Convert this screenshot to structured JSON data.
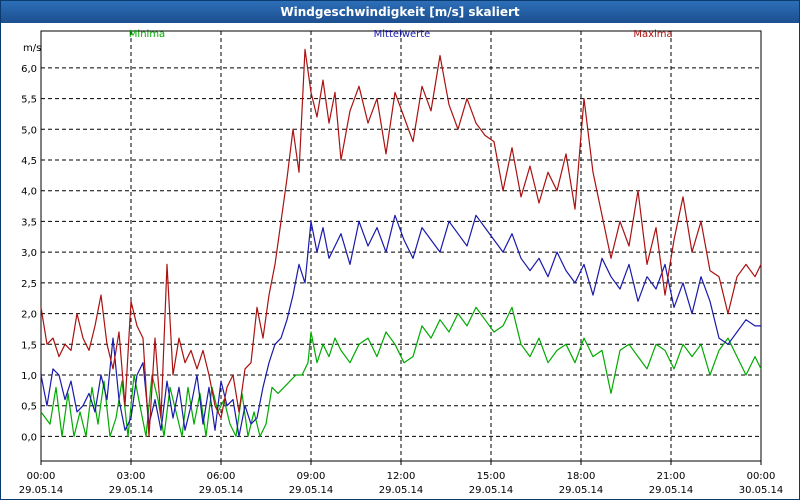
{
  "window": {
    "title": "Windgeschwindigkeit [m/s] skaliert"
  },
  "chart_data": {
    "type": "line",
    "title": "Windgeschwindigkeit [m/s] skaliert",
    "ylabel": "m/s",
    "xlabel": "",
    "ylim": [
      -0.4,
      6.6
    ],
    "xlim": [
      0,
      24
    ],
    "grid": true,
    "legend_position": "top",
    "yticks": [
      "0,0",
      "0,5",
      "1,0",
      "1,5",
      "2,0",
      "2,5",
      "3,0",
      "3,5",
      "4,0",
      "4,5",
      "5,0",
      "5,5",
      "6,0"
    ],
    "yticks_values": [
      0,
      0.5,
      1,
      1.5,
      2,
      2.5,
      3,
      3.5,
      4,
      4.5,
      5,
      5.5,
      6
    ],
    "xticks": [
      {
        "time": "00:00",
        "date": "29.05.14"
      },
      {
        "time": "03:00",
        "date": "29.05.14"
      },
      {
        "time": "06:00",
        "date": "29.05.14"
      },
      {
        "time": "09:00",
        "date": "29.05.14"
      },
      {
        "time": "12:00",
        "date": "29.05.14"
      },
      {
        "time": "15:00",
        "date": "29.05.14"
      },
      {
        "time": "18:00",
        "date": "29.05.14"
      },
      {
        "time": "21:00",
        "date": "29.05.14"
      },
      {
        "time": "00:00",
        "date": "30.05.14"
      }
    ],
    "xticks_hours": [
      0,
      3,
      6,
      9,
      12,
      15,
      18,
      21,
      24
    ],
    "series": [
      {
        "name": "Minima",
        "color": "#00aa00",
        "x": [
          0,
          0.3,
          0.5,
          0.7,
          0.9,
          1.1,
          1.3,
          1.5,
          1.7,
          1.9,
          2.1,
          2.3,
          2.5,
          2.7,
          2.9,
          3.1,
          3.3,
          3.5,
          3.7,
          3.9,
          4.1,
          4.3,
          4.5,
          4.7,
          4.9,
          5.1,
          5.3,
          5.5,
          5.7,
          5.9,
          6.1,
          6.3,
          6.5,
          6.7,
          6.9,
          7.1,
          7.3,
          7.5,
          7.7,
          7.9,
          8.1,
          8.3,
          8.5,
          8.7,
          8.9,
          9.0,
          9.2,
          9.4,
          9.6,
          9.8,
          10.0,
          10.3,
          10.6,
          10.9,
          11.2,
          11.5,
          11.8,
          12.1,
          12.4,
          12.7,
          13.0,
          13.3,
          13.6,
          13.9,
          14.2,
          14.5,
          14.8,
          15.1,
          15.4,
          15.7,
          16.0,
          16.3,
          16.6,
          16.9,
          17.2,
          17.5,
          17.8,
          18.1,
          18.4,
          18.7,
          19.0,
          19.3,
          19.6,
          19.9,
          20.2,
          20.5,
          20.8,
          21.1,
          21.4,
          21.7,
          22.0,
          22.3,
          22.6,
          22.9,
          23.2,
          23.5,
          23.8,
          24.0
        ],
        "values": [
          0.4,
          0.2,
          0.8,
          0.0,
          0.7,
          0.0,
          0.4,
          0.0,
          0.8,
          0.2,
          0.9,
          0.0,
          0.3,
          0.9,
          0.0,
          1.0,
          0.5,
          0.0,
          1.0,
          0.6,
          0.0,
          0.8,
          0.4,
          0.0,
          0.8,
          0.2,
          0.7,
          0.0,
          0.8,
          0.4,
          0.6,
          0.2,
          0.0,
          0.7,
          0.0,
          0.4,
          0.0,
          0.2,
          0.8,
          0.7,
          0.8,
          0.9,
          1.0,
          1.0,
          1.2,
          1.7,
          1.2,
          1.5,
          1.3,
          1.6,
          1.4,
          1.2,
          1.5,
          1.6,
          1.3,
          1.7,
          1.5,
          1.2,
          1.3,
          1.8,
          1.6,
          1.9,
          1.7,
          2.0,
          1.8,
          2.1,
          1.9,
          1.7,
          1.8,
          2.1,
          1.5,
          1.3,
          1.6,
          1.2,
          1.4,
          1.5,
          1.2,
          1.6,
          1.3,
          1.4,
          0.7,
          1.4,
          1.5,
          1.3,
          1.1,
          1.5,
          1.4,
          1.1,
          1.5,
          1.3,
          1.5,
          1.0,
          1.4,
          1.6,
          1.3,
          1.0,
          1.3,
          1.1
        ]
      },
      {
        "name": "Mittelwerte",
        "color": "#1a1aaa",
        "x": [
          0,
          0.2,
          0.4,
          0.6,
          0.8,
          1.0,
          1.2,
          1.4,
          1.6,
          1.8,
          2.0,
          2.2,
          2.4,
          2.6,
          2.8,
          3.0,
          3.2,
          3.4,
          3.6,
          3.8,
          4.0,
          4.2,
          4.4,
          4.6,
          4.8,
          5.0,
          5.2,
          5.4,
          5.6,
          5.8,
          6.0,
          6.2,
          6.4,
          6.6,
          6.8,
          7.0,
          7.2,
          7.4,
          7.6,
          7.8,
          8.0,
          8.2,
          8.4,
          8.6,
          8.8,
          9.0,
          9.2,
          9.4,
          9.6,
          9.8,
          10.0,
          10.3,
          10.6,
          10.9,
          11.2,
          11.5,
          11.8,
          12.1,
          12.4,
          12.7,
          13.0,
          13.3,
          13.6,
          13.9,
          14.2,
          14.5,
          14.8,
          15.1,
          15.4,
          15.7,
          16.0,
          16.3,
          16.6,
          16.9,
          17.2,
          17.5,
          17.8,
          18.1,
          18.4,
          18.7,
          19.0,
          19.3,
          19.6,
          19.9,
          20.2,
          20.5,
          20.8,
          21.1,
          21.4,
          21.7,
          22.0,
          22.3,
          22.6,
          22.9,
          23.2,
          23.5,
          23.8,
          24.0
        ],
        "values": [
          1.0,
          0.5,
          1.1,
          1.0,
          0.6,
          0.9,
          0.4,
          0.5,
          0.7,
          0.4,
          1.0,
          0.6,
          1.6,
          0.6,
          0.1,
          0.3,
          1.0,
          1.2,
          0.2,
          0.6,
          0.1,
          0.9,
          0.3,
          0.8,
          0.1,
          0.5,
          1.0,
          0.2,
          0.8,
          0.1,
          0.9,
          0.5,
          0.6,
          0.0,
          0.5,
          0.2,
          0.3,
          0.8,
          1.2,
          1.5,
          1.6,
          1.9,
          2.3,
          2.8,
          2.5,
          3.5,
          3.0,
          3.4,
          2.9,
          3.1,
          3.3,
          2.8,
          3.5,
          3.1,
          3.4,
          3.0,
          3.6,
          3.2,
          2.9,
          3.4,
          3.2,
          3.0,
          3.5,
          3.3,
          3.1,
          3.6,
          3.4,
          3.2,
          3.0,
          3.3,
          2.9,
          2.7,
          2.9,
          2.6,
          3.0,
          2.7,
          2.5,
          2.8,
          2.3,
          2.9,
          2.6,
          2.4,
          2.8,
          2.2,
          2.6,
          2.4,
          2.8,
          2.1,
          2.5,
          2.0,
          2.6,
          2.2,
          1.6,
          1.5,
          1.7,
          1.9,
          1.8,
          1.8
        ]
      },
      {
        "name": "Maxima",
        "color": "#aa1111",
        "x": [
          0,
          0.2,
          0.4,
          0.6,
          0.8,
          1.0,
          1.2,
          1.4,
          1.6,
          1.8,
          2.0,
          2.2,
          2.4,
          2.6,
          2.8,
          3.0,
          3.2,
          3.4,
          3.6,
          3.8,
          4.0,
          4.2,
          4.4,
          4.6,
          4.8,
          5.0,
          5.2,
          5.4,
          5.6,
          5.8,
          6.0,
          6.2,
          6.4,
          6.6,
          6.8,
          7.0,
          7.2,
          7.4,
          7.6,
          7.8,
          8.0,
          8.2,
          8.4,
          8.6,
          8.8,
          9.0,
          9.2,
          9.4,
          9.6,
          9.8,
          10.0,
          10.3,
          10.6,
          10.9,
          11.2,
          11.5,
          11.8,
          12.1,
          12.4,
          12.7,
          13.0,
          13.3,
          13.6,
          13.9,
          14.2,
          14.5,
          14.8,
          15.1,
          15.4,
          15.7,
          16.0,
          16.3,
          16.6,
          16.9,
          17.2,
          17.5,
          17.8,
          18.1,
          18.4,
          18.7,
          19.0,
          19.3,
          19.6,
          19.9,
          20.2,
          20.5,
          20.8,
          21.1,
          21.4,
          21.7,
          22.0,
          22.3,
          22.6,
          22.9,
          23.2,
          23.5,
          23.8,
          24.0
        ],
        "values": [
          2.1,
          1.5,
          1.6,
          1.3,
          1.5,
          1.4,
          2.0,
          1.6,
          1.4,
          1.8,
          2.3,
          1.5,
          1.1,
          1.7,
          0.5,
          2.2,
          1.8,
          1.6,
          0.0,
          1.6,
          0.3,
          2.8,
          1.0,
          1.6,
          1.2,
          1.4,
          1.1,
          1.4,
          1.0,
          0.5,
          0.3,
          0.8,
          1.0,
          0.4,
          1.1,
          1.2,
          2.1,
          1.6,
          2.3,
          2.8,
          3.5,
          4.2,
          5.0,
          4.3,
          6.3,
          5.6,
          5.2,
          5.8,
          5.1,
          5.6,
          4.5,
          5.3,
          5.7,
          5.1,
          5.5,
          4.6,
          5.6,
          5.2,
          4.8,
          5.7,
          5.3,
          6.2,
          5.4,
          5.0,
          5.5,
          5.1,
          4.9,
          4.8,
          4.0,
          4.7,
          3.9,
          4.4,
          3.8,
          4.3,
          4.0,
          4.6,
          3.7,
          5.5,
          4.3,
          3.6,
          2.9,
          3.5,
          3.1,
          4.0,
          2.8,
          3.4,
          2.3,
          3.2,
          3.9,
          3.0,
          3.5,
          2.7,
          2.6,
          2.0,
          2.6,
          2.8,
          2.6,
          2.8
        ]
      }
    ]
  }
}
